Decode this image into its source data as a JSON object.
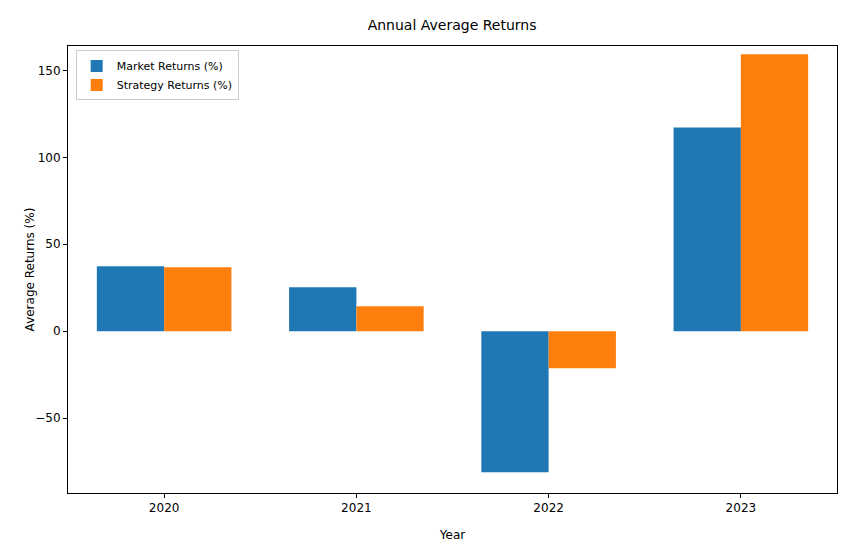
{
  "chart_data": {
    "type": "bar",
    "title": "Annual Average Returns",
    "x_label": "Year",
    "y_label": "Average Returns (%)",
    "categories": [
      "2020",
      "2021",
      "2022",
      "2023"
    ],
    "series": [
      {
        "name": "Market Returns (%)",
        "color": "#1f77b4",
        "values": [
          37.4,
          25.3,
          -81.0,
          117.2
        ]
      },
      {
        "name": "Strategy Returns (%)",
        "color": "#ff7f0e",
        "values": [
          36.8,
          14.4,
          -21.3,
          159.2
        ]
      }
    ],
    "ylim": [
      -93,
      164
    ],
    "yticks": [
      -50,
      0,
      50,
      100,
      150
    ],
    "grid": false,
    "legend": "upper left"
  }
}
